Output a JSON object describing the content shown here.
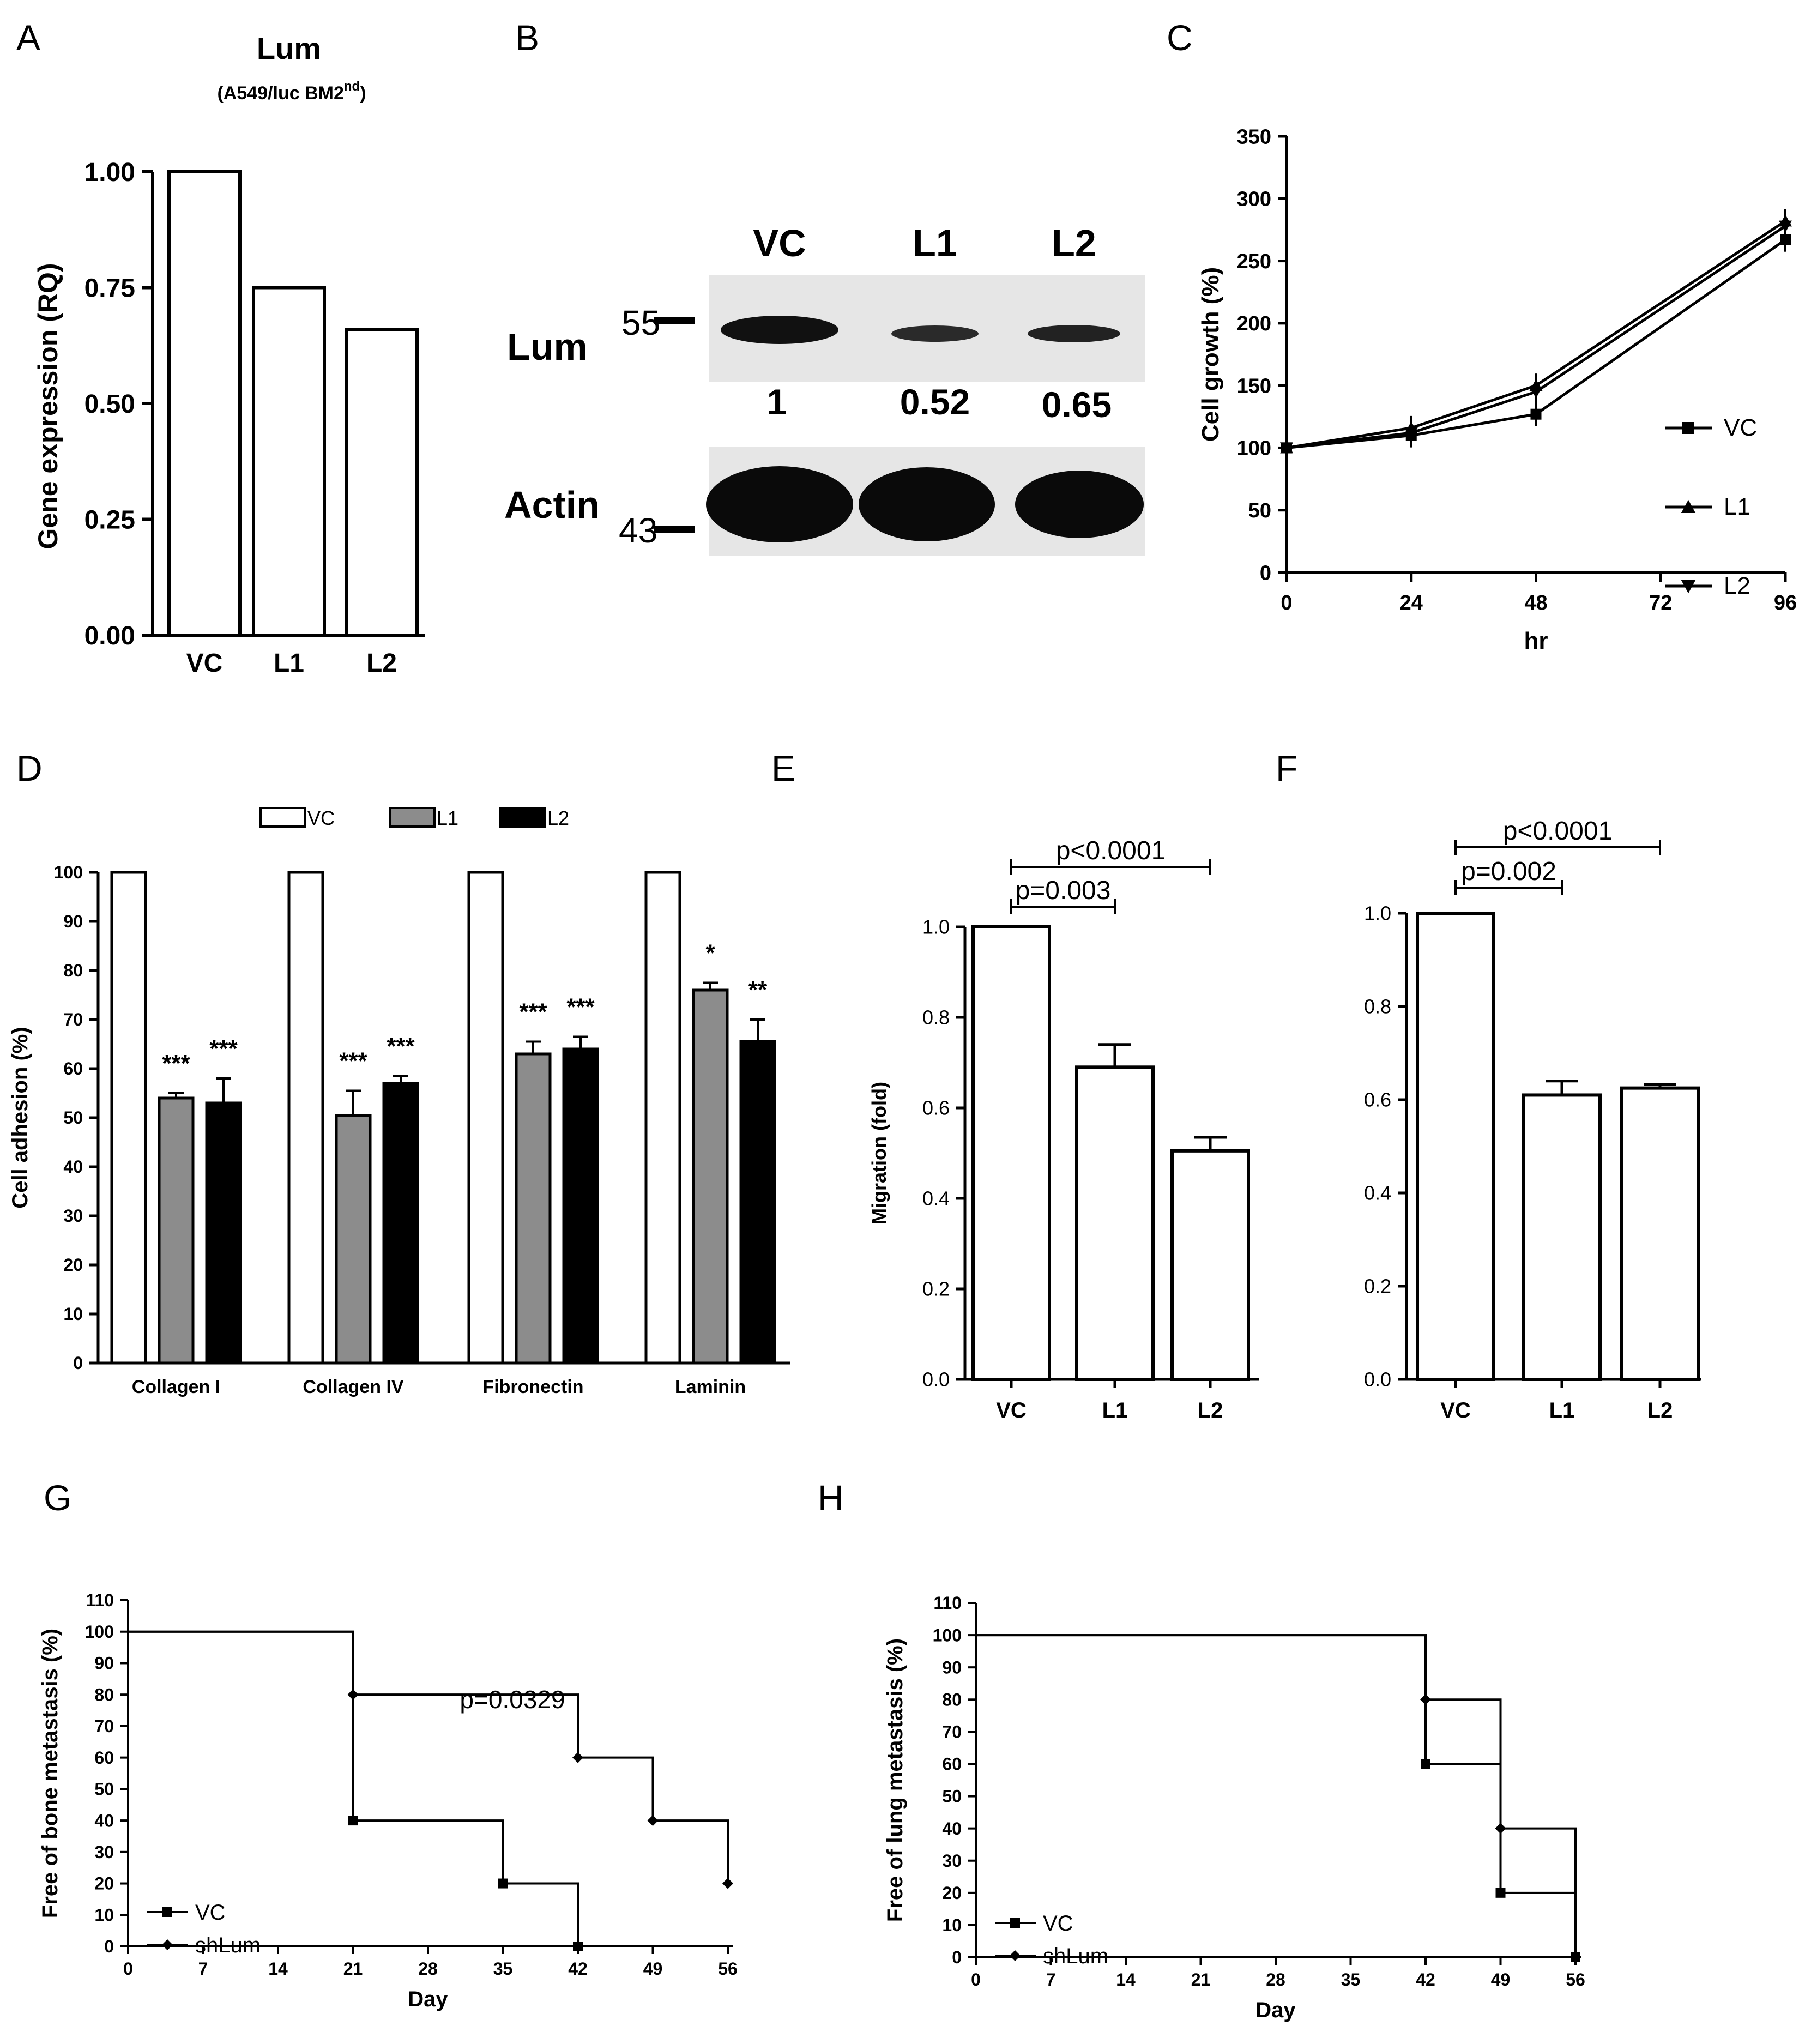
{
  "panels": {
    "A": {
      "letter": "A",
      "title": "Lum",
      "subtitle_main": "(A549/luc BM2",
      "subtitle_sup": "nd",
      "subtitle_end": ")"
    },
    "B": {
      "letter": "B"
    },
    "C": {
      "letter": "C"
    },
    "D": {
      "letter": "D"
    },
    "E": {
      "letter": "E"
    },
    "F": {
      "letter": "F"
    },
    "G": {
      "letter": "G"
    },
    "H": {
      "letter": "H"
    }
  },
  "blot": {
    "lanes": [
      "VC",
      "L1",
      "L2"
    ],
    "rows": [
      {
        "label": "Lum",
        "marker": "55",
        "quant": [
          "1",
          "0.52",
          "0.65"
        ]
      },
      {
        "label": "Actin",
        "marker": "43"
      }
    ]
  },
  "colors": {
    "axis": "#000000",
    "bar_vc": "#ffffff",
    "bar_l1": "#8c8c8c",
    "bar_l2": "#000000",
    "gel_bg": "#e6e6e6",
    "band": "#111111"
  },
  "chart_data": [
    {
      "id": "A",
      "type": "bar",
      "categories": [
        "VC",
        "L1",
        "L2"
      ],
      "values": [
        1.0,
        0.75,
        0.66
      ],
      "ylabel": "Gene expression (RQ)",
      "xlabel": "",
      "ylim": [
        0,
        1.0
      ],
      "yticks": [
        "0.00",
        "0.25",
        "0.50",
        "0.75",
        "1.00"
      ]
    },
    {
      "id": "C",
      "type": "line",
      "xlabel": "hr",
      "ylabel": "Cell growth (%)",
      "x": [
        0,
        24,
        48,
        96
      ],
      "xticks": [
        "0",
        "24",
        "48",
        "72",
        "96"
      ],
      "yticks": [
        "0",
        "50",
        "100",
        "150",
        "200",
        "250",
        "300",
        "350"
      ],
      "ylim": [
        0,
        350
      ],
      "xlim": [
        0,
        96
      ],
      "legend": "right",
      "series": [
        {
          "name": "VC",
          "marker": "square",
          "values": [
            100,
            110,
            127,
            267
          ]
        },
        {
          "name": "L1",
          "marker": "triangle-up",
          "values": [
            100,
            116,
            150,
            282
          ]
        },
        {
          "name": "L2",
          "marker": "triangle-down",
          "values": [
            100,
            112,
            145,
            278
          ]
        }
      ]
    },
    {
      "id": "D",
      "type": "bar",
      "categories": [
        "Collagen I",
        "Collagen IV",
        "Fibronectin",
        "Laminin"
      ],
      "ylabel": "Cell adhesion (%)",
      "ylim": [
        0,
        100
      ],
      "yticks": [
        "0",
        "10",
        "20",
        "30",
        "40",
        "50",
        "60",
        "70",
        "80",
        "90",
        "100"
      ],
      "legend": "top",
      "series": [
        {
          "name": "VC",
          "values": [
            100,
            100,
            100,
            100
          ],
          "errors": [
            0,
            0,
            0,
            0
          ],
          "annotations": [
            "",
            "",
            "",
            ""
          ]
        },
        {
          "name": "L1",
          "values": [
            54,
            50.5,
            63,
            76
          ],
          "errors": [
            1,
            5,
            2.5,
            1.5
          ],
          "annotations": [
            "***",
            "***",
            "***",
            "*"
          ]
        },
        {
          "name": "L2",
          "values": [
            53,
            57,
            64,
            65.5
          ],
          "errors": [
            5,
            1.5,
            2.5,
            4.5
          ],
          "annotations": [
            "***",
            "***",
            "***",
            "**"
          ]
        }
      ]
    },
    {
      "id": "E",
      "type": "bar",
      "categories": [
        "VC",
        "L1",
        "L2"
      ],
      "values": [
        1.0,
        0.69,
        0.505
      ],
      "errors": [
        0,
        0.05,
        0.03
      ],
      "ylabel": "Migration (fold)",
      "ylim": [
        0,
        1.0
      ],
      "yticks": [
        "0.0",
        "0.2",
        "0.4",
        "0.6",
        "0.8",
        "1.0"
      ],
      "annotations": [
        {
          "from": "VC",
          "to": "L2",
          "text": "p<0.0001"
        },
        {
          "from": "VC",
          "to": "L1",
          "text": "p=0.003"
        }
      ]
    },
    {
      "id": "F",
      "type": "bar",
      "categories": [
        "VC",
        "L1",
        "L2"
      ],
      "values": [
        1.0,
        0.61,
        0.625
      ],
      "errors": [
        0,
        0.03,
        0.008
      ],
      "ylabel": "",
      "ylim": [
        0,
        1.0
      ],
      "yticks": [
        "0.0",
        "0.2",
        "0.4",
        "0.6",
        "0.8",
        "1.0"
      ],
      "annotations": [
        {
          "from": "VC",
          "to": "L2",
          "text": "p<0.0001"
        },
        {
          "from": "VC",
          "to": "L1",
          "text": "p=0.002"
        }
      ]
    },
    {
      "id": "G",
      "type": "line",
      "step": true,
      "xlabel": "Day",
      "ylabel": "Free of bone metastasis (%)",
      "xticks": [
        "0",
        "7",
        "14",
        "21",
        "28",
        "35",
        "42",
        "49",
        "56"
      ],
      "yticks": [
        "0",
        "10",
        "20",
        "30",
        "40",
        "50",
        "60",
        "70",
        "80",
        "90",
        "100",
        "110"
      ],
      "xlim": [
        0,
        56
      ],
      "ylim": [
        0,
        110
      ],
      "legend": "bottom-left",
      "annotation": "p=0.0329",
      "series": [
        {
          "name": "VC",
          "marker": "square",
          "points": [
            [
              0,
              100
            ],
            [
              21,
              40
            ],
            [
              35,
              20
            ],
            [
              42,
              0
            ]
          ]
        },
        {
          "name": "shLum",
          "marker": "diamond",
          "points": [
            [
              0,
              100
            ],
            [
              21,
              80
            ],
            [
              42,
              60
            ],
            [
              49,
              40
            ],
            [
              56,
              20
            ]
          ]
        }
      ]
    },
    {
      "id": "H",
      "type": "line",
      "step": true,
      "xlabel": "Day",
      "ylabel": "Free of lung metastasis (%)",
      "xticks": [
        "0",
        "7",
        "14",
        "21",
        "28",
        "35",
        "42",
        "49",
        "56"
      ],
      "yticks": [
        "0",
        "10",
        "20",
        "30",
        "40",
        "50",
        "60",
        "70",
        "80",
        "90",
        "100",
        "110"
      ],
      "xlim": [
        0,
        56
      ],
      "ylim": [
        0,
        110
      ],
      "legend": "bottom-left",
      "series": [
        {
          "name": "VC",
          "marker": "square",
          "points": [
            [
              0,
              100
            ],
            [
              42,
              60
            ],
            [
              49,
              20
            ],
            [
              56,
              0
            ]
          ]
        },
        {
          "name": "shLum",
          "marker": "diamond",
          "points": [
            [
              0,
              100
            ],
            [
              42,
              80
            ],
            [
              49,
              40
            ],
            [
              56,
              0
            ]
          ]
        }
      ]
    }
  ]
}
